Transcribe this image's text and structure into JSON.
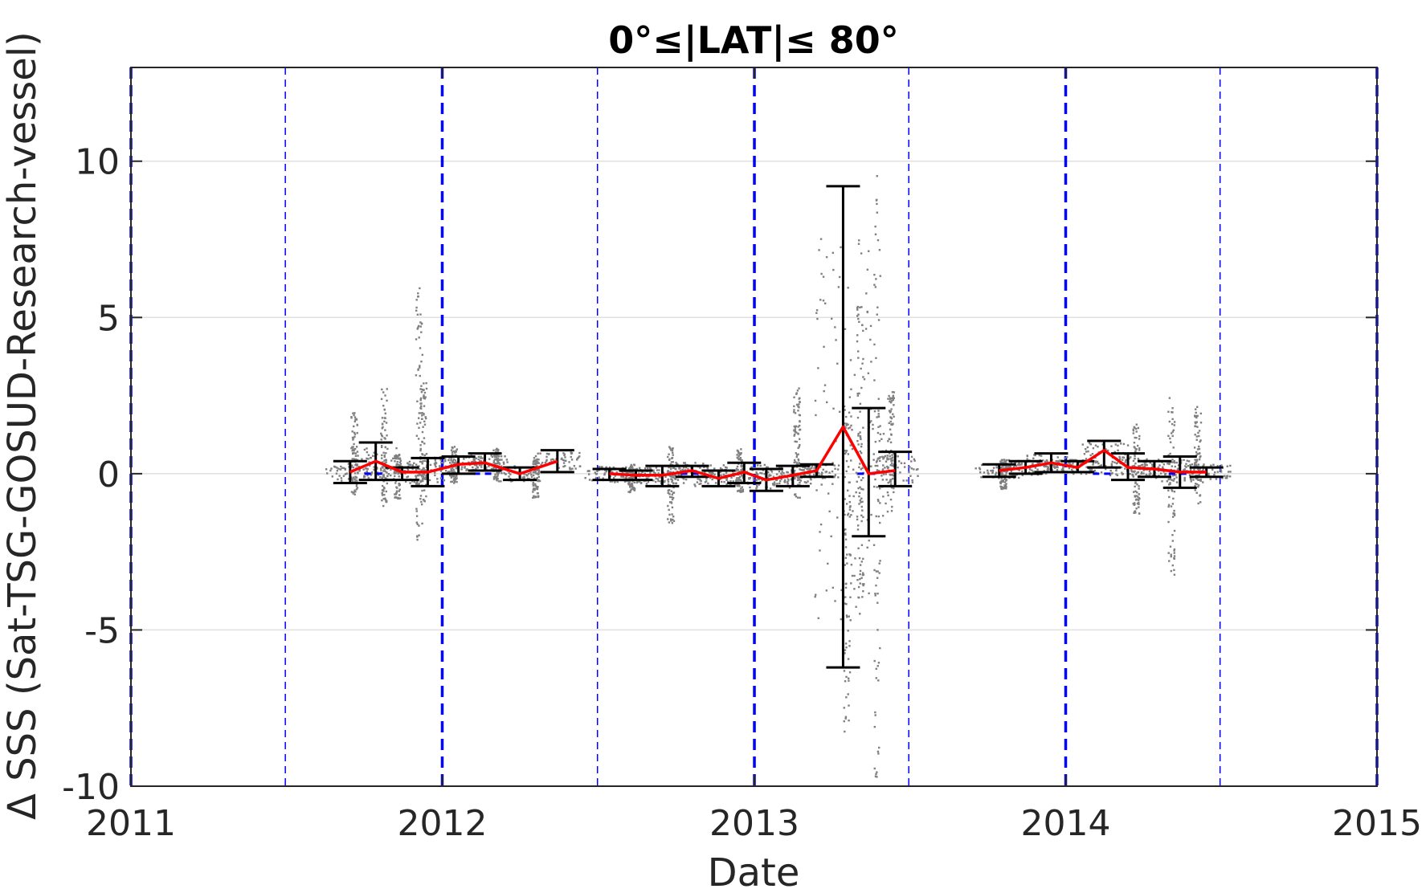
{
  "chart_data": {
    "type": "scatter",
    "title": "0°≤|LAT|≤ 80°",
    "xlabel": "Date",
    "ylabel": "Δ SSS (Sat-TSG-GOSUD-Research-vessel)",
    "xlim": [
      "2011-01-01",
      "2015-01-01"
    ],
    "ylim": [
      -10,
      13
    ],
    "x_ticks": [
      "2011",
      "2012",
      "2013",
      "2014",
      "2015"
    ],
    "y_ticks": [
      -10,
      -5,
      0,
      5,
      10
    ],
    "grid": "horizontal",
    "year_boundaries": [
      "2011-01-01",
      "2012-01-01",
      "2013-01-01",
      "2014-01-01",
      "2015-01-01"
    ],
    "half_year_lines": [
      "2011-07-01",
      "2012-07-01",
      "2013-07-01",
      "2014-07-01"
    ],
    "series": [
      {
        "kind": "monthly_mean",
        "points": [
          {
            "x": "2011-09-15",
            "y": 0.05,
            "lo": -0.3,
            "hi": 0.4
          },
          {
            "x": "2011-10-15",
            "y": 0.4,
            "lo": -0.2,
            "hi": 1.0
          },
          {
            "x": "2011-11-15",
            "y": 0.05,
            "lo": -0.2,
            "hi": 0.2
          },
          {
            "x": "2011-12-15",
            "y": 0.05,
            "lo": -0.4,
            "hi": 0.5
          },
          {
            "x": "2012-01-20",
            "y": 0.3,
            "lo": 0.0,
            "hi": 0.55
          },
          {
            "x": "2012-02-20",
            "y": 0.35,
            "lo": 0.1,
            "hi": 0.65
          },
          {
            "x": "2012-04-01",
            "y": 0.0,
            "lo": -0.2,
            "hi": 0.2
          },
          {
            "x": "2012-05-15",
            "y": 0.4,
            "lo": 0.05,
            "hi": 0.75
          },
          {
            "x": "2012-07-15",
            "y": 0.0,
            "lo": -0.2,
            "hi": 0.15
          },
          {
            "x": "2012-08-15",
            "y": -0.05,
            "lo": -0.2,
            "hi": 0.1
          },
          {
            "x": "2012-09-15",
            "y": -0.05,
            "lo": -0.4,
            "hi": 0.25
          },
          {
            "x": "2012-10-20",
            "y": 0.1,
            "lo": -0.1,
            "hi": 0.25
          },
          {
            "x": "2012-11-20",
            "y": -0.15,
            "lo": -0.4,
            "hi": 0.1
          },
          {
            "x": "2012-12-20",
            "y": 0.05,
            "lo": -0.3,
            "hi": 0.35
          },
          {
            "x": "2013-01-15",
            "y": -0.2,
            "lo": -0.55,
            "hi": 0.15
          },
          {
            "x": "2013-02-15",
            "y": -0.05,
            "lo": -0.4,
            "hi": 0.25
          },
          {
            "x": "2013-03-15",
            "y": 0.1,
            "lo": -0.1,
            "hi": 0.3
          },
          {
            "x": "2013-04-15",
            "y": 1.5,
            "lo": -6.2,
            "hi": 9.2
          },
          {
            "x": "2013-05-15",
            "y": 0.0,
            "lo": -2.0,
            "hi": 2.1
          },
          {
            "x": "2013-06-15",
            "y": 0.1,
            "lo": -0.4,
            "hi": 0.7
          },
          {
            "x": "2013-10-15",
            "y": 0.1,
            "lo": -0.1,
            "hi": 0.3
          },
          {
            "x": "2013-11-15",
            "y": 0.2,
            "lo": 0.0,
            "hi": 0.4
          },
          {
            "x": "2013-12-15",
            "y": 0.35,
            "lo": 0.05,
            "hi": 0.65
          },
          {
            "x": "2014-01-15",
            "y": 0.2,
            "lo": 0.05,
            "hi": 0.4
          },
          {
            "x": "2014-02-15",
            "y": 0.75,
            "lo": 0.2,
            "hi": 1.05
          },
          {
            "x": "2014-03-15",
            "y": 0.2,
            "lo": -0.2,
            "hi": 0.65
          },
          {
            "x": "2014-04-15",
            "y": 0.15,
            "lo": -0.1,
            "hi": 0.4
          },
          {
            "x": "2014-05-15",
            "y": 0.05,
            "lo": -0.45,
            "hi": 0.55
          },
          {
            "x": "2014-06-15",
            "y": 0.05,
            "lo": -0.1,
            "hi": 0.2
          }
        ]
      },
      {
        "kind": "individual_differences",
        "clusters": [
          {
            "x": "2011-09-20",
            "y_min": -0.7,
            "y_max": 2.0
          },
          {
            "x": "2011-10-25",
            "y_min": -1.1,
            "y_max": 2.8
          },
          {
            "x": "2011-11-10",
            "y_min": -0.8,
            "y_max": 0.6
          },
          {
            "x": "2011-12-05",
            "y_min": -2.2,
            "y_max": 6.0
          },
          {
            "x": "2011-12-10",
            "y_min": -0.9,
            "y_max": 2.9
          },
          {
            "x": "2012-01-15",
            "y_min": -0.3,
            "y_max": 0.9
          },
          {
            "x": "2012-03-05",
            "y_min": -0.2,
            "y_max": 0.8
          },
          {
            "x": "2012-04-20",
            "y_min": -0.8,
            "y_max": 0.5
          },
          {
            "x": "2012-08-10",
            "y_min": -0.6,
            "y_max": 0.3
          },
          {
            "x": "2012-09-25",
            "y_min": -1.6,
            "y_max": 0.9
          },
          {
            "x": "2012-12-15",
            "y_min": -0.6,
            "y_max": 0.8
          },
          {
            "x": "2013-02-20",
            "y_min": -0.8,
            "y_max": 2.8
          },
          {
            "x": "2013-04-20",
            "y_min": -8.3,
            "y_max": 2.2
          },
          {
            "x": "2013-05-05",
            "y_min": -4.0,
            "y_max": 5.5
          },
          {
            "x": "2013-05-25",
            "y_min": -9.8,
            "y_max": 9.7
          },
          {
            "x": "2013-06-10",
            "y_min": -1.0,
            "y_max": 2.7
          },
          {
            "x": "2013-10-20",
            "y_min": -0.5,
            "y_max": 0.4
          },
          {
            "x": "2014-03-25",
            "y_min": -1.3,
            "y_max": 1.6
          },
          {
            "x": "2014-05-05",
            "y_min": -3.4,
            "y_max": 2.5
          },
          {
            "x": "2014-06-05",
            "y_min": -1.0,
            "y_max": 2.2
          }
        ]
      },
      {
        "kind": "reference_dashes",
        "points": [
          {
            "x": "2011-10-15",
            "y": 0.0
          },
          {
            "x": "2012-02-20",
            "y": 0.0
          },
          {
            "x": "2012-10-20",
            "y": 0.0
          },
          {
            "x": "2013-05-15",
            "y": 0.0
          },
          {
            "x": "2014-02-15",
            "y": 0.0
          },
          {
            "x": "2014-05-15",
            "y": 0.0
          }
        ]
      }
    ],
    "colors": {
      "mean_line": "#ff0000",
      "error_bar": "#000000",
      "scatter": "#808080",
      "boundary": "#0000ff",
      "grid": "#e0e0e0",
      "axis": "#262626"
    }
  }
}
